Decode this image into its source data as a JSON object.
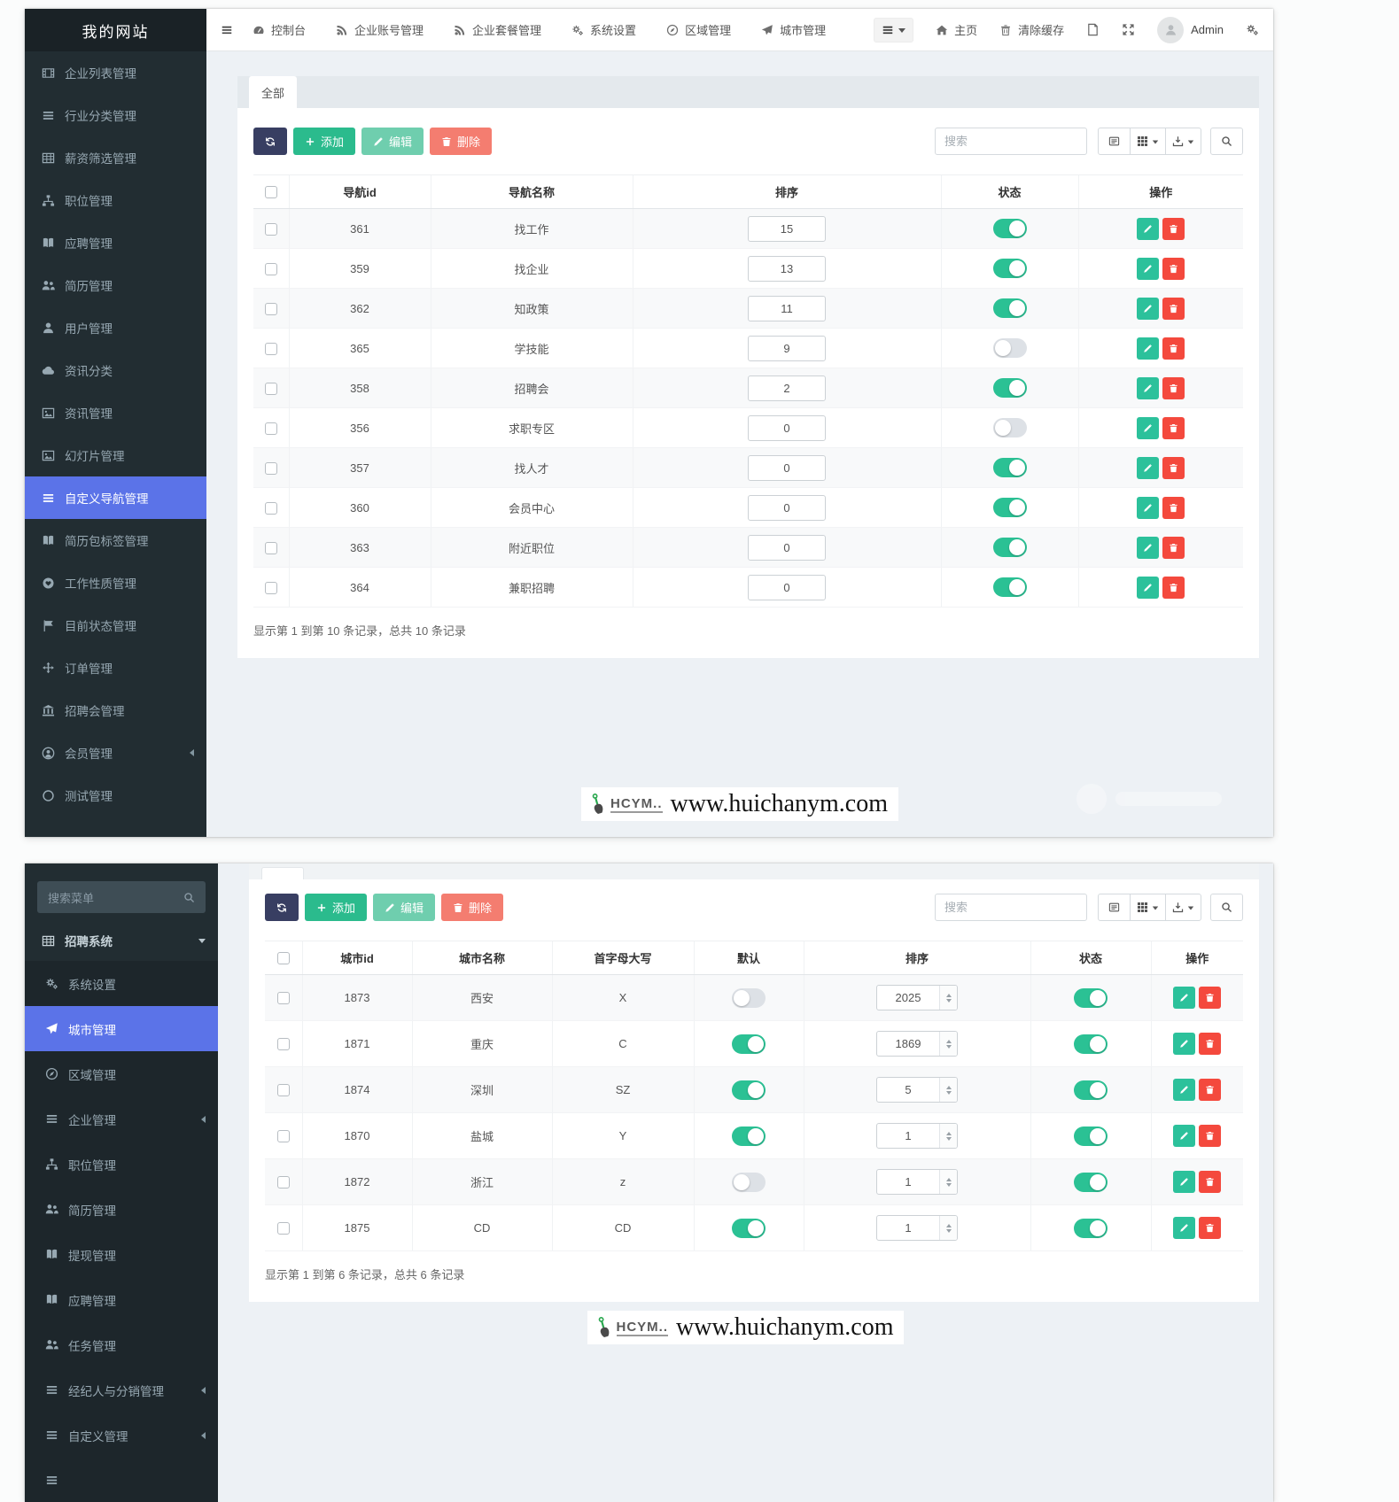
{
  "watermark": {
    "brand": "HCYM..",
    "url": "www.huichanym.com",
    "icon": "shovel-icon"
  },
  "panel_top": {
    "sidebar": {
      "title": "我的网站",
      "items": [
        {
          "icon": "film-icon",
          "label": "企业列表管理"
        },
        {
          "icon": "bars-icon",
          "label": "行业分类管理"
        },
        {
          "icon": "table-icon",
          "label": "薪资筛选管理"
        },
        {
          "icon": "sitemap-icon",
          "label": "职位管理"
        },
        {
          "icon": "book-icon",
          "label": "应聘管理"
        },
        {
          "icon": "users-icon",
          "label": "简历管理"
        },
        {
          "icon": "user-icon",
          "label": "用户管理"
        },
        {
          "icon": "cloud-icon",
          "label": "资讯分类"
        },
        {
          "icon": "image-icon",
          "label": "资讯管理"
        },
        {
          "icon": "picture-icon",
          "label": "幻灯片管理"
        },
        {
          "icon": "bars-icon",
          "label": "自定义导航管理",
          "active": true
        },
        {
          "icon": "book-icon",
          "label": "简历包标签管理"
        },
        {
          "icon": "heart-icon",
          "label": "工作性质管理"
        },
        {
          "icon": "flag-icon",
          "label": "目前状态管理"
        },
        {
          "icon": "move-icon",
          "label": "订单管理"
        },
        {
          "icon": "bank-icon",
          "label": "招聘会管理"
        },
        {
          "icon": "user-circle-icon",
          "label": "会员管理",
          "chevron": "left"
        },
        {
          "icon": "circle-icon",
          "label": "测试管理"
        }
      ]
    },
    "navbar": {
      "menu": [
        {
          "icon": "gauge-icon",
          "label": "控制台"
        },
        {
          "icon": "rss-icon",
          "label": "企业账号管理"
        },
        {
          "icon": "rss-icon",
          "label": "企业套餐管理"
        },
        {
          "icon": "gears-icon",
          "label": "系统设置"
        },
        {
          "icon": "compass-icon",
          "label": "区域管理"
        },
        {
          "icon": "send-icon",
          "label": "城市管理"
        }
      ],
      "right": {
        "home_label": "主页",
        "clear_cache_label": "清除缓存",
        "user_label": "Admin"
      }
    },
    "tab_label": "全部",
    "toolbar": {
      "add_label": "添加",
      "edit_label": "编辑",
      "delete_label": "删除",
      "search_placeholder": "搜索"
    },
    "table": {
      "columns": [
        "导航id",
        "导航名称",
        "排序",
        "状态",
        "操作"
      ],
      "rows": [
        {
          "id": "361",
          "name": "找工作",
          "sort": "15",
          "status_on": true
        },
        {
          "id": "359",
          "name": "找企业",
          "sort": "13",
          "status_on": true
        },
        {
          "id": "362",
          "name": "知政策",
          "sort": "11",
          "status_on": true
        },
        {
          "id": "365",
          "name": "学技能",
          "sort": "9",
          "status_on": false
        },
        {
          "id": "358",
          "name": "招聘会",
          "sort": "2",
          "status_on": true
        },
        {
          "id": "356",
          "name": "求职专区",
          "sort": "0",
          "status_on": false
        },
        {
          "id": "357",
          "name": "找人才",
          "sort": "0",
          "status_on": true
        },
        {
          "id": "360",
          "name": "会员中心",
          "sort": "0",
          "status_on": true
        },
        {
          "id": "363",
          "name": "附近职位",
          "sort": "0",
          "status_on": true
        },
        {
          "id": "364",
          "name": "兼职招聘",
          "sort": "0",
          "status_on": true
        }
      ]
    },
    "footer_text": "显示第 1 到第 10 条记录，总共 10 条记录"
  },
  "panel_bottom": {
    "sidebar": {
      "search_placeholder": "搜索菜单",
      "root": {
        "icon": "table-icon",
        "label": "招聘系统",
        "chevron": "down"
      },
      "items": [
        {
          "icon": "gears-icon",
          "label": "系统设置"
        },
        {
          "icon": "send-icon",
          "label": "城市管理",
          "active": true
        },
        {
          "icon": "compass-icon",
          "label": "区域管理"
        },
        {
          "icon": "bars-icon",
          "label": "企业管理",
          "chevron": "left"
        },
        {
          "icon": "sitemap-icon",
          "label": "职位管理"
        },
        {
          "icon": "users-icon",
          "label": "简历管理"
        },
        {
          "icon": "book-icon",
          "label": "提现管理"
        },
        {
          "icon": "book-icon",
          "label": "应聘管理"
        },
        {
          "icon": "users-icon",
          "label": "任务管理"
        },
        {
          "icon": "bars-icon",
          "label": "经纪人与分销管理",
          "chevron": "left"
        },
        {
          "icon": "bars-icon",
          "label": "自定义管理",
          "chevron": "left"
        },
        {
          "icon": "bars-icon",
          "label": ""
        }
      ]
    },
    "toolbar": {
      "add_label": "添加",
      "edit_label": "编辑",
      "delete_label": "删除",
      "search_placeholder": "搜索"
    },
    "table": {
      "columns": [
        "城市id",
        "城市名称",
        "首字母大写",
        "默认",
        "排序",
        "状态",
        "操作"
      ],
      "rows": [
        {
          "id": "1873",
          "name": "西安",
          "initial": "X",
          "default_on": false,
          "sort": "2025",
          "status_on": true
        },
        {
          "id": "1871",
          "name": "重庆",
          "initial": "C",
          "default_on": true,
          "sort": "1869",
          "status_on": true
        },
        {
          "id": "1874",
          "name": "深圳",
          "initial": "SZ",
          "default_on": true,
          "sort": "5",
          "status_on": true
        },
        {
          "id": "1870",
          "name": "盐城",
          "initial": "Y",
          "default_on": true,
          "sort": "1",
          "status_on": true
        },
        {
          "id": "1872",
          "name": "浙江",
          "initial": "z",
          "default_on": false,
          "sort": "1",
          "status_on": true
        },
        {
          "id": "1875",
          "name": "CD",
          "initial": "CD",
          "default_on": true,
          "sort": "1",
          "status_on": true
        }
      ]
    },
    "footer_text": "显示第 1 到第 6 条记录，总共 6 条记录"
  }
}
